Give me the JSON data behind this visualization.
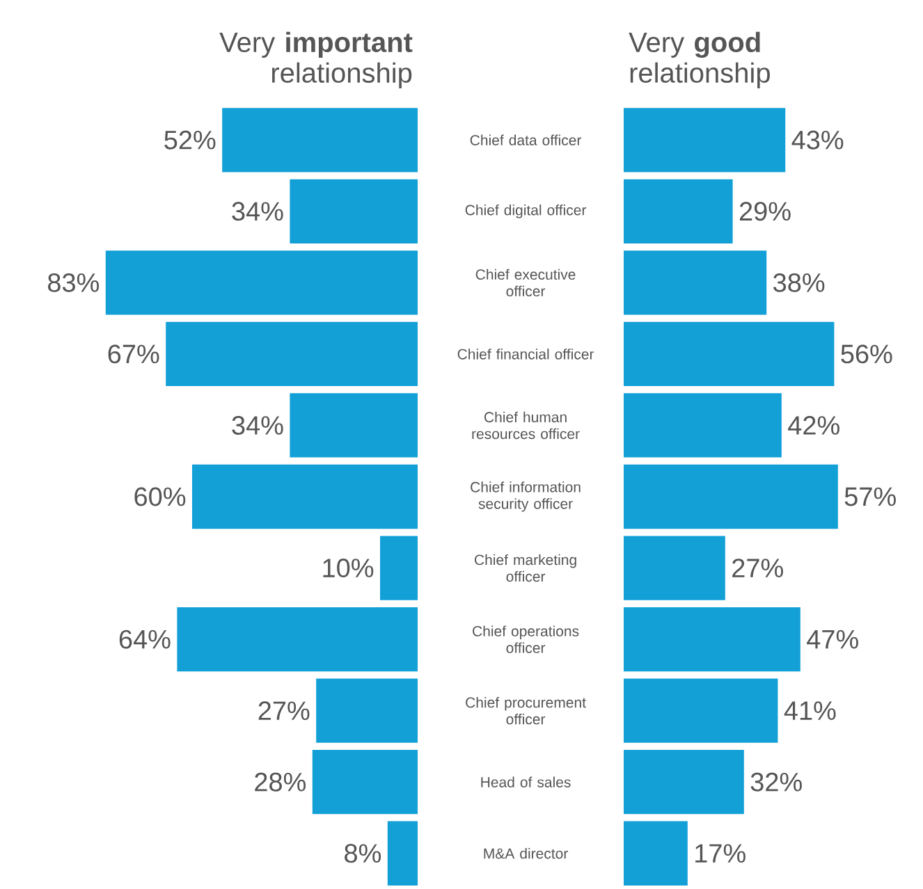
{
  "chart_data": [
    {
      "type": "bar",
      "orientation": "horizontal",
      "title": "Very **important** relationship",
      "categories": [
        "Chief data officer",
        "Chief digital officer",
        "Chief executive officer",
        "Chief financial officer",
        "Chief human resources officer",
        "Chief information security officer",
        "Chief marketing officer",
        "Chief operations officer",
        "Chief procurement officer",
        "Head of sales",
        "M&A director"
      ],
      "values": [
        52,
        34,
        83,
        67,
        34,
        60,
        10,
        64,
        27,
        28,
        8
      ],
      "value_labels": [
        "52%",
        "34%",
        "83%",
        "67%",
        "34%",
        "60%",
        "10%",
        "64%",
        "27%",
        "28%",
        "8%"
      ],
      "color": "#12a0d7",
      "tick_labels": "y"
    },
    {
      "type": "bar",
      "orientation": "horizontal",
      "title": "Very **good** relationship",
      "categories": [
        null,
        null,
        null,
        null,
        null,
        null,
        null,
        null,
        null,
        null,
        null
      ],
      "values": [
        43,
        29,
        38,
        56,
        42,
        57,
        27,
        47,
        41,
        32,
        17
      ],
      "value_labels": [
        "43%",
        "29%",
        "38%",
        "56%",
        "42%",
        "57%",
        "27%",
        "47%",
        "41%",
        "32%",
        "17%"
      ],
      "color": "#12a0d7",
      "tick_labels": false
    }
  ]
}
